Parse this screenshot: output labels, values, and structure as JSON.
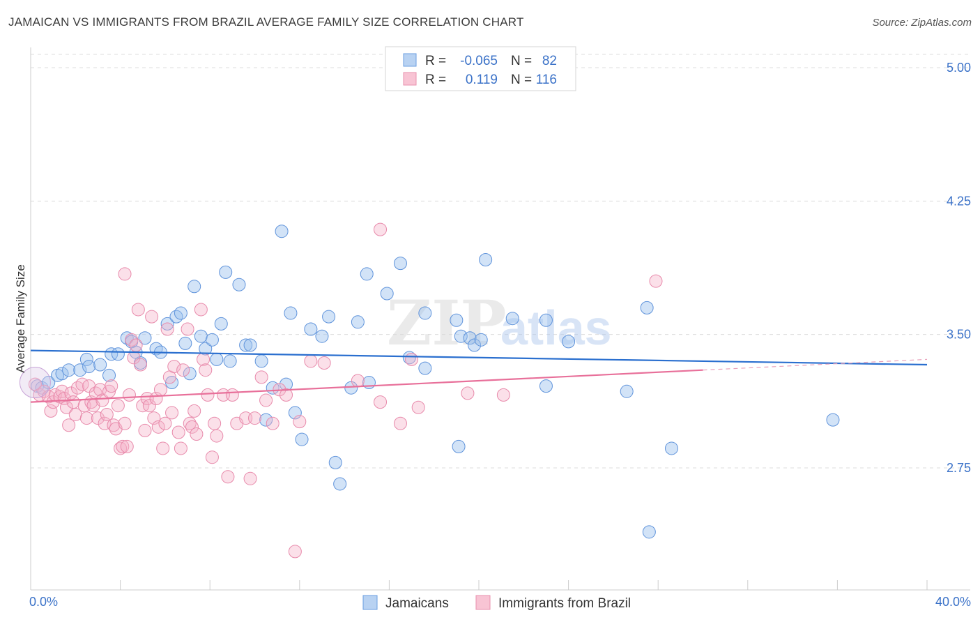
{
  "title": "JAMAICAN VS IMMIGRANTS FROM BRAZIL AVERAGE FAMILY SIZE CORRELATION CHART",
  "source": "Source: ZipAtlas.com",
  "legend": {
    "rows": [
      {
        "r_label": "R =",
        "r_value": "-0.065",
        "n_label": "N =",
        "n_value": "82"
      },
      {
        "r_label": "R =",
        "r_value": "0.119",
        "n_label": "N =",
        "n_value": "116"
      }
    ]
  },
  "watermark": {
    "zip": "ZIP",
    "atlas": "atlas"
  },
  "chart_data": {
    "type": "scatter",
    "title": "JAMAICAN VS IMMIGRANTS FROM BRAZIL AVERAGE FAMILY SIZE CORRELATION CHART",
    "xlabel": "",
    "ylabel": "Average Family Size",
    "xlim": [
      0,
      40
    ],
    "ylim": [
      2.2,
      5.1
    ],
    "x_tick_labels": [
      "0.0%",
      "40.0%"
    ],
    "y_ticks": [
      2.75,
      3.5,
      4.25,
      5.0
    ],
    "y_tick_labels": [
      "2.75",
      "3.50",
      "4.25",
      "5.00"
    ],
    "grid": true,
    "legend_position": "top-center",
    "colors": {
      "jamaicans": "#7aaee8",
      "brazil": "#f2a0bb",
      "jam_line": "#2a6fcf",
      "bra_line": "#e8709a"
    },
    "series": [
      {
        "name": "Jamaicans",
        "trend": {
          "x": [
            0,
            40
          ],
          "y": [
            3.41,
            3.33
          ]
        },
        "points": [
          [
            0.3,
            3.21
          ],
          [
            0.5,
            3.2
          ],
          [
            0.8,
            3.23
          ],
          [
            1.2,
            3.27
          ],
          [
            1.4,
            3.28
          ],
          [
            1.7,
            3.3
          ],
          [
            2.2,
            3.3
          ],
          [
            2.5,
            3.36
          ],
          [
            2.6,
            3.32
          ],
          [
            3.1,
            3.33
          ],
          [
            3.5,
            3.27
          ],
          [
            3.6,
            3.39
          ],
          [
            3.9,
            3.39
          ],
          [
            4.3,
            3.48
          ],
          [
            4.5,
            3.46
          ],
          [
            4.7,
            3.4
          ],
          [
            4.9,
            3.34
          ],
          [
            5.1,
            3.48
          ],
          [
            5.6,
            3.42
          ],
          [
            5.8,
            3.4
          ],
          [
            6.1,
            3.56
          ],
          [
            6.3,
            3.23
          ],
          [
            6.5,
            3.6
          ],
          [
            6.7,
            3.62
          ],
          [
            6.9,
            3.45
          ],
          [
            7.1,
            3.28
          ],
          [
            7.3,
            3.77
          ],
          [
            7.6,
            3.49
          ],
          [
            7.8,
            3.42
          ],
          [
            8.1,
            3.47
          ],
          [
            8.3,
            3.36
          ],
          [
            8.5,
            3.56
          ],
          [
            8.7,
            3.85
          ],
          [
            8.9,
            3.35
          ],
          [
            9.3,
            3.78
          ],
          [
            9.6,
            3.44
          ],
          [
            9.8,
            3.44
          ],
          [
            10.3,
            3.35
          ],
          [
            10.5,
            3.02
          ],
          [
            10.8,
            3.2
          ],
          [
            11.2,
            4.08
          ],
          [
            11.4,
            3.22
          ],
          [
            11.6,
            3.62
          ],
          [
            11.8,
            3.06
          ],
          [
            12.1,
            2.91
          ],
          [
            12.5,
            3.53
          ],
          [
            13.0,
            3.49
          ],
          [
            13.3,
            3.6
          ],
          [
            13.6,
            2.78
          ],
          [
            13.8,
            2.66
          ],
          [
            14.3,
            3.2
          ],
          [
            14.6,
            3.57
          ],
          [
            15.0,
            3.84
          ],
          [
            15.1,
            3.23
          ],
          [
            15.9,
            3.73
          ],
          [
            16.5,
            3.9
          ],
          [
            16.9,
            3.37
          ],
          [
            17.6,
            3.62
          ],
          [
            17.6,
            3.31
          ],
          [
            19.0,
            3.58
          ],
          [
            19.1,
            2.87
          ],
          [
            19.2,
            3.49
          ],
          [
            19.6,
            3.48
          ],
          [
            19.8,
            3.44
          ],
          [
            20.1,
            3.47
          ],
          [
            20.3,
            3.92
          ],
          [
            21.5,
            3.59
          ],
          [
            23.0,
            3.58
          ],
          [
            23.0,
            3.21
          ],
          [
            24.0,
            3.46
          ],
          [
            26.6,
            3.18
          ],
          [
            27.5,
            3.65
          ],
          [
            27.6,
            2.39
          ],
          [
            28.6,
            2.86
          ],
          [
            35.8,
            3.02
          ]
        ]
      },
      {
        "name": "Immigrants from Brazil",
        "trend": {
          "x": [
            0,
            40
          ],
          "y": [
            3.12,
            3.36
          ]
        },
        "points": [
          [
            0.2,
            3.22
          ],
          [
            0.4,
            3.16
          ],
          [
            0.6,
            3.18
          ],
          [
            0.8,
            3.15
          ],
          [
            0.9,
            3.07
          ],
          [
            1.0,
            3.12
          ],
          [
            1.1,
            3.16
          ],
          [
            1.3,
            3.15
          ],
          [
            1.4,
            3.18
          ],
          [
            1.5,
            3.14
          ],
          [
            1.6,
            3.09
          ],
          [
            1.7,
            2.99
          ],
          [
            1.8,
            3.17
          ],
          [
            1.9,
            3.12
          ],
          [
            2.0,
            3.05
          ],
          [
            2.1,
            3.2
          ],
          [
            2.3,
            3.22
          ],
          [
            2.4,
            3.1
          ],
          [
            2.5,
            3.03
          ],
          [
            2.6,
            3.21
          ],
          [
            2.7,
            3.12
          ],
          [
            2.8,
            3.1
          ],
          [
            2.9,
            3.17
          ],
          [
            3.0,
            3.03
          ],
          [
            3.1,
            3.19
          ],
          [
            3.2,
            3.13
          ],
          [
            3.3,
            3.0
          ],
          [
            3.4,
            3.05
          ],
          [
            3.5,
            3.18
          ],
          [
            3.6,
            3.21
          ],
          [
            3.7,
            2.99
          ],
          [
            3.8,
            2.97
          ],
          [
            3.9,
            3.1
          ],
          [
            4.0,
            2.86
          ],
          [
            4.1,
            2.87
          ],
          [
            4.2,
            3.0
          ],
          [
            4.3,
            2.87
          ],
          [
            4.4,
            3.16
          ],
          [
            4.5,
            3.47
          ],
          [
            4.6,
            3.37
          ],
          [
            4.7,
            3.44
          ],
          [
            4.8,
            3.64
          ],
          [
            4.9,
            3.33
          ],
          [
            5.0,
            3.1
          ],
          [
            5.1,
            2.96
          ],
          [
            5.2,
            3.14
          ],
          [
            5.3,
            3.1
          ],
          [
            5.4,
            3.6
          ],
          [
            5.5,
            3.03
          ],
          [
            5.6,
            3.14
          ],
          [
            5.7,
            2.98
          ],
          [
            5.8,
            3.19
          ],
          [
            5.9,
            2.86
          ],
          [
            6.0,
            3.0
          ],
          [
            6.1,
            3.53
          ],
          [
            6.2,
            3.26
          ],
          [
            6.3,
            3.06
          ],
          [
            6.4,
            3.32
          ],
          [
            6.6,
            2.95
          ],
          [
            6.7,
            2.86
          ],
          [
            6.8,
            3.3
          ],
          [
            7.0,
            3.53
          ],
          [
            7.1,
            3.0
          ],
          [
            7.2,
            2.98
          ],
          [
            7.3,
            3.07
          ],
          [
            7.4,
            2.94
          ],
          [
            7.6,
            3.64
          ],
          [
            7.7,
            3.36
          ],
          [
            7.8,
            3.3
          ],
          [
            7.9,
            3.16
          ],
          [
            8.1,
            2.81
          ],
          [
            8.2,
            3.0
          ],
          [
            8.3,
            2.93
          ],
          [
            8.6,
            3.16
          ],
          [
            8.8,
            2.7
          ],
          [
            9.0,
            3.16
          ],
          [
            9.2,
            3.0
          ],
          [
            9.6,
            3.03
          ],
          [
            9.8,
            2.69
          ],
          [
            10.0,
            3.03
          ],
          [
            10.3,
            3.26
          ],
          [
            10.5,
            3.13
          ],
          [
            10.8,
            3.0
          ],
          [
            11.1,
            3.19
          ],
          [
            11.4,
            3.16
          ],
          [
            11.8,
            2.28
          ],
          [
            12.0,
            3.01
          ],
          [
            12.5,
            3.35
          ],
          [
            13.1,
            3.34
          ],
          [
            14.6,
            3.24
          ],
          [
            15.6,
            3.12
          ],
          [
            15.6,
            4.09
          ],
          [
            16.5,
            3.0
          ],
          [
            17.0,
            3.36
          ],
          [
            17.3,
            3.09
          ],
          [
            19.5,
            3.17
          ],
          [
            21.1,
            3.16
          ],
          [
            27.9,
            3.8
          ],
          [
            4.2,
            3.84
          ]
        ]
      }
    ]
  },
  "bottom_legend": [
    "Jamaicans",
    "Immigrants from Brazil"
  ]
}
